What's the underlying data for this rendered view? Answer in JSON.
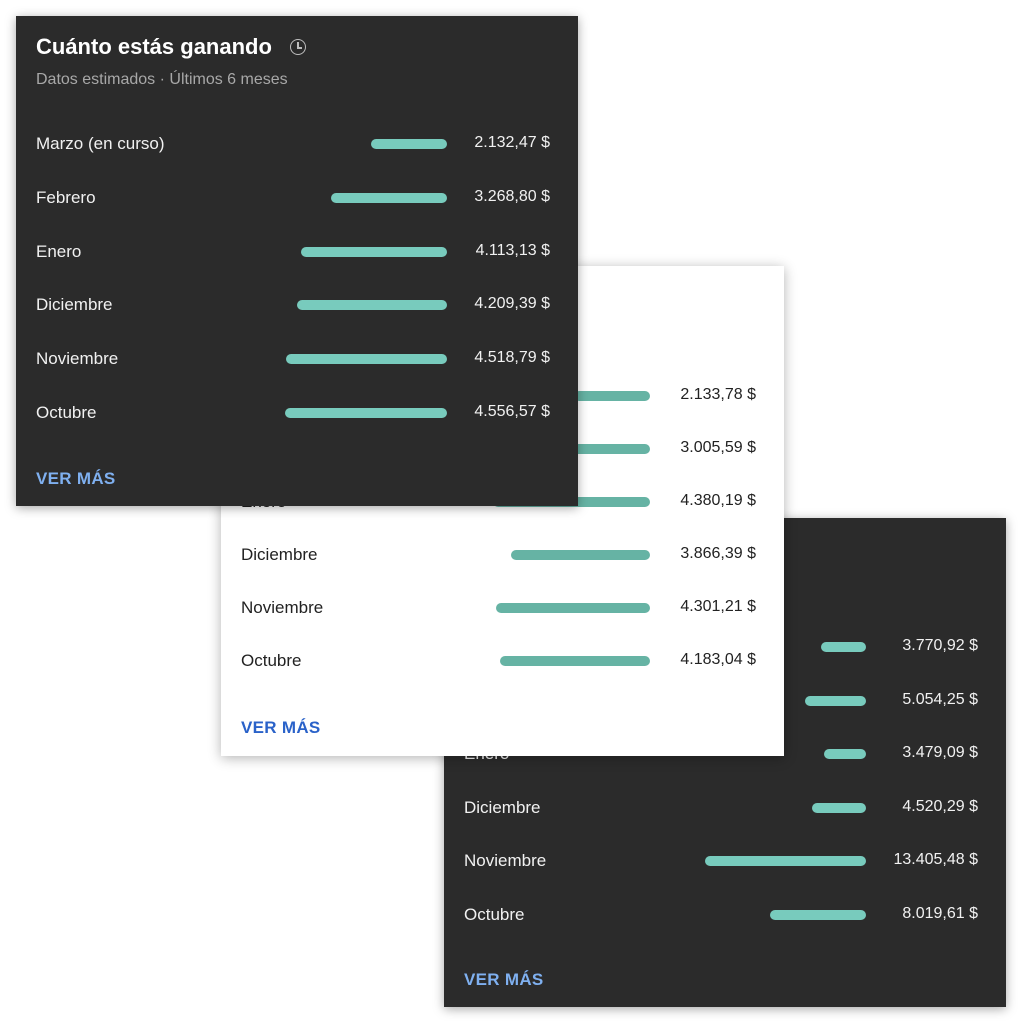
{
  "colors": {
    "dark_card_bg": "#2b2b2b",
    "light_card_bg": "#ffffff",
    "bar_dark": "#78cbbd",
    "bar_light": "#66b3a4",
    "link_dark": "#7fb0f0",
    "link_light": "#2a62c9"
  },
  "icons": {
    "title_icon": "clock-icon"
  },
  "cards": [
    {
      "theme": "dark",
      "title": "Cuánto estás ganando",
      "subtitle": "Datos estimados · Últimos 6 meses",
      "more_label": "VER MÁS",
      "max_value": 4556.57,
      "rows": [
        {
          "label": "Marzo (en curso)",
          "value": "2.132,47 $",
          "amount": 2132.47
        },
        {
          "label": "Febrero",
          "value": "3.268,80 $",
          "amount": 3268.8
        },
        {
          "label": "Enero",
          "value": "4.113,13 $",
          "amount": 4113.13
        },
        {
          "label": "Diciembre",
          "value": "4.209,39 $",
          "amount": 4209.39
        },
        {
          "label": "Noviembre",
          "value": "4.518,79 $",
          "amount": 4518.79
        },
        {
          "label": "Octubre",
          "value": "4.556,57 $",
          "amount": 4556.57
        }
      ]
    },
    {
      "theme": "light",
      "more_label": "VER MÁS",
      "max_value": 4380.19,
      "rows": [
        {
          "label": "",
          "value": "2.133,78 $",
          "amount": 2133.78
        },
        {
          "label": "",
          "value": "3.005,59 $",
          "amount": 3005.59
        },
        {
          "label": "Enero",
          "value": "4.380,19 $",
          "amount": 4380.19
        },
        {
          "label": "Diciembre",
          "value": "3.866,39 $",
          "amount": 3866.39
        },
        {
          "label": "Noviembre",
          "value": "4.301,21 $",
          "amount": 4301.21
        },
        {
          "label": "Octubre",
          "value": "4.183,04 $",
          "amount": 4183.04
        }
      ]
    },
    {
      "theme": "dark",
      "more_label": "VER MÁS",
      "max_value": 13405.48,
      "rows": [
        {
          "label": "",
          "value": "3.770,92 $",
          "amount": 3770.92
        },
        {
          "label": "",
          "value": "5.054,25 $",
          "amount": 5054.25
        },
        {
          "label": "Enero",
          "value": "3.479,09 $",
          "amount": 3479.09
        },
        {
          "label": "Diciembre",
          "value": "4.520,29 $",
          "amount": 4520.29
        },
        {
          "label": "Noviembre",
          "value": "13.405,48 $",
          "amount": 13405.48
        },
        {
          "label": "Octubre",
          "value": "8.019,61 $",
          "amount": 8019.61
        }
      ]
    }
  ]
}
